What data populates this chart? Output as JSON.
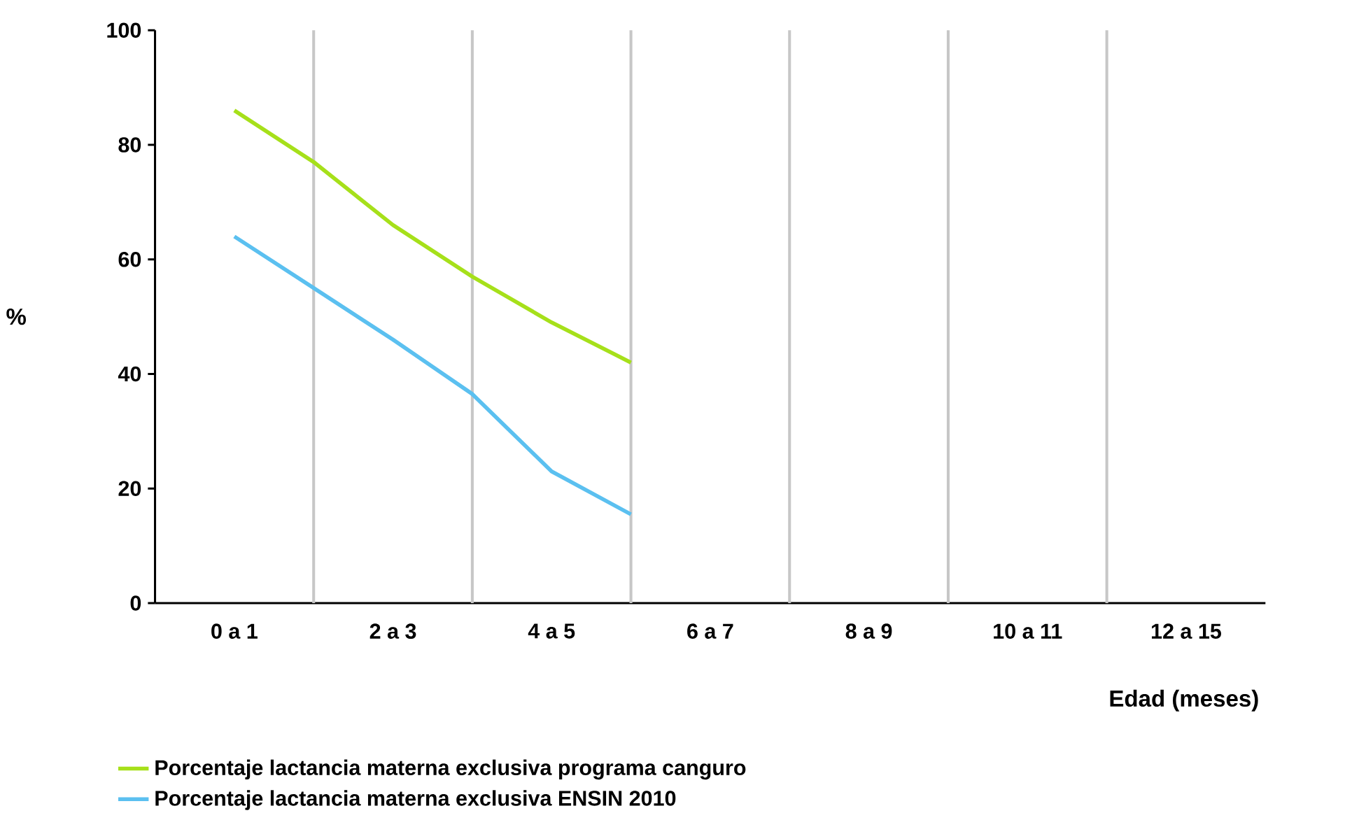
{
  "chart_data": {
    "type": "line",
    "xlabel": "Edad (meses)",
    "ylabel": "%",
    "categories": [
      "0 a 1",
      null,
      "2 a 3",
      null,
      "4 a 5",
      null,
      "6 a 7",
      null,
      "8 a 9",
      null,
      "10 a 11",
      null,
      "12 a 15"
    ],
    "series": [
      {
        "name": "Porcentaje lactancia materna exclusiva programa canguro",
        "color": "#a6e01a",
        "values": [
          86,
          77,
          66,
          57,
          49,
          42,
          null,
          null,
          null,
          null,
          null,
          null,
          null
        ]
      },
      {
        "name": "Porcentaje lactancia materna exclusiva ENSIN 2010",
        "color": "#5bc0f0",
        "values": [
          64,
          55,
          46,
          36.5,
          23,
          15.5,
          null,
          null,
          null,
          null,
          null,
          null,
          null
        ]
      }
    ],
    "ylim": [
      0,
      100
    ],
    "yticks": [
      0,
      20,
      40,
      60,
      80,
      100
    ],
    "grid": "x",
    "legend": "bottom",
    "line_style": "solid",
    "marker": "none"
  }
}
